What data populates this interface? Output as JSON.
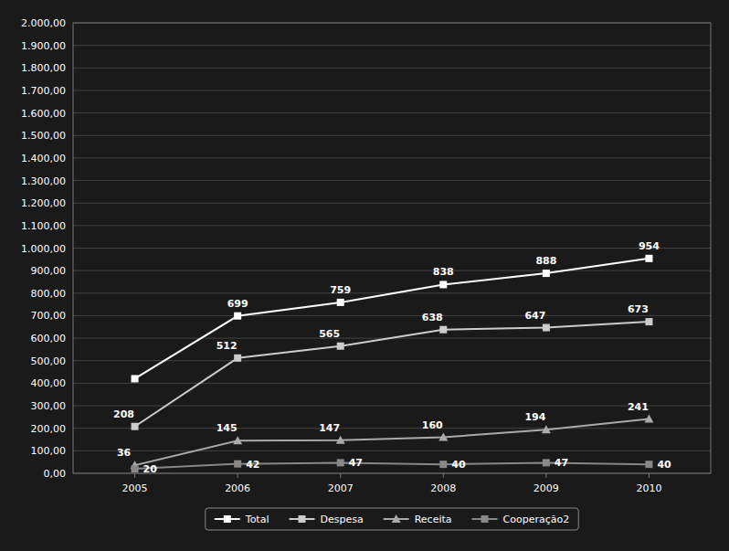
{
  "chart_data": {
    "type": "line",
    "x": [
      2005,
      2006,
      2007,
      2008,
      2009,
      2010
    ],
    "xlim": [
      2004.4,
      2010.6
    ],
    "xticks": [
      2005,
      2006,
      2007,
      2008,
      2009,
      2010
    ],
    "ylim": [
      0,
      2000
    ],
    "yticks": [
      {
        "value": 0,
        "label": "0,00"
      },
      {
        "value": 100,
        "label": "100,00"
      },
      {
        "value": 200,
        "label": "200,00"
      },
      {
        "value": 300,
        "label": "300,00"
      },
      {
        "value": 400,
        "label": "400,00"
      },
      {
        "value": 500,
        "label": "500,00"
      },
      {
        "value": 600,
        "label": "600,00"
      },
      {
        "value": 700,
        "label": "700,00"
      },
      {
        "value": 800,
        "label": "800,00"
      },
      {
        "value": 900,
        "label": "900,00"
      },
      {
        "value": 1000,
        "label": "1.000,00"
      },
      {
        "value": 1100,
        "label": "1.100,00"
      },
      {
        "value": 1200,
        "label": "1.200,00"
      },
      {
        "value": 1300,
        "label": "1.300,00"
      },
      {
        "value": 1400,
        "label": "1.400,00"
      },
      {
        "value": 1500,
        "label": "1.500,00"
      },
      {
        "value": 1600,
        "label": "1.600,00"
      },
      {
        "value": 1700,
        "label": "1.700,00"
      },
      {
        "value": 1800,
        "label": "1.800,00"
      },
      {
        "value": 1900,
        "label": "1.900,00"
      },
      {
        "value": 2000,
        "label": "2.000,00"
      }
    ],
    "grid": true,
    "legend": "bottom",
    "data_labels": true,
    "series": [
      {
        "name": "Total",
        "color": "#ffffff",
        "marker": "square",
        "values": [
          420,
          699,
          759,
          838,
          888,
          954
        ],
        "value_labels": [
          null,
          "699",
          "759",
          "838",
          "888",
          "954"
        ]
      },
      {
        "name": "Despesa",
        "color": "#cccccc",
        "marker": "square",
        "values": [
          208,
          512,
          565,
          638,
          647,
          673
        ]
      },
      {
        "name": "Receita",
        "color": "#aaaaaa",
        "marker": "triangle",
        "values": [
          36,
          145,
          147,
          160,
          194,
          241
        ]
      },
      {
        "name": "Cooperação2",
        "color": "#888888",
        "marker": "square",
        "values": [
          20,
          42,
          47,
          40,
          47,
          40
        ]
      }
    ]
  }
}
